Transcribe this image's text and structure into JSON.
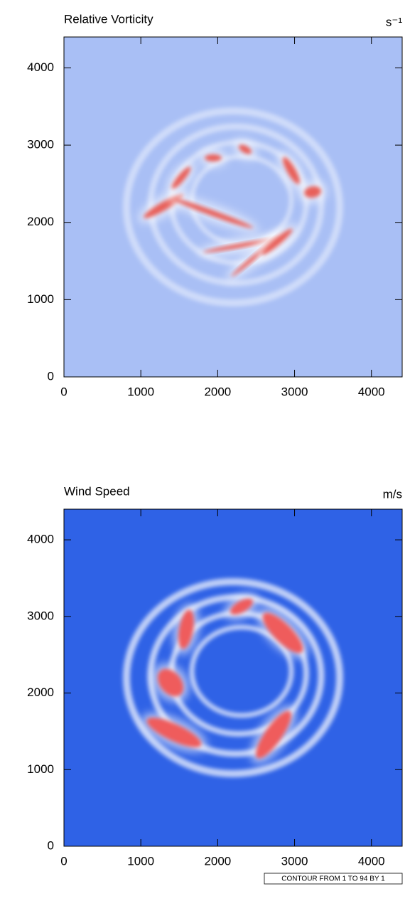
{
  "chart_data": [
    {
      "type": "field",
      "title": "Relative Vorticity",
      "units": "s⁻¹",
      "xlim": [
        0,
        4400
      ],
      "ylim": [
        0,
        4400
      ],
      "xticks": [
        0,
        1000,
        2000,
        3000,
        4000
      ],
      "yticks": [
        0,
        1000,
        2000,
        3000,
        4000
      ],
      "color": "#a9bff5"
    },
    {
      "type": "field",
      "title": "Wind Speed",
      "units": "m/s",
      "xlim": [
        0,
        4400
      ],
      "ylim": [
        0,
        4400
      ],
      "xticks": [
        0,
        1000,
        2000,
        3000,
        4000
      ],
      "yticks": [
        0,
        1000,
        2000,
        3000,
        4000
      ],
      "color": "#2f62e6",
      "annotation": "CONTOUR FROM 1 TO 94 BY 1"
    }
  ]
}
